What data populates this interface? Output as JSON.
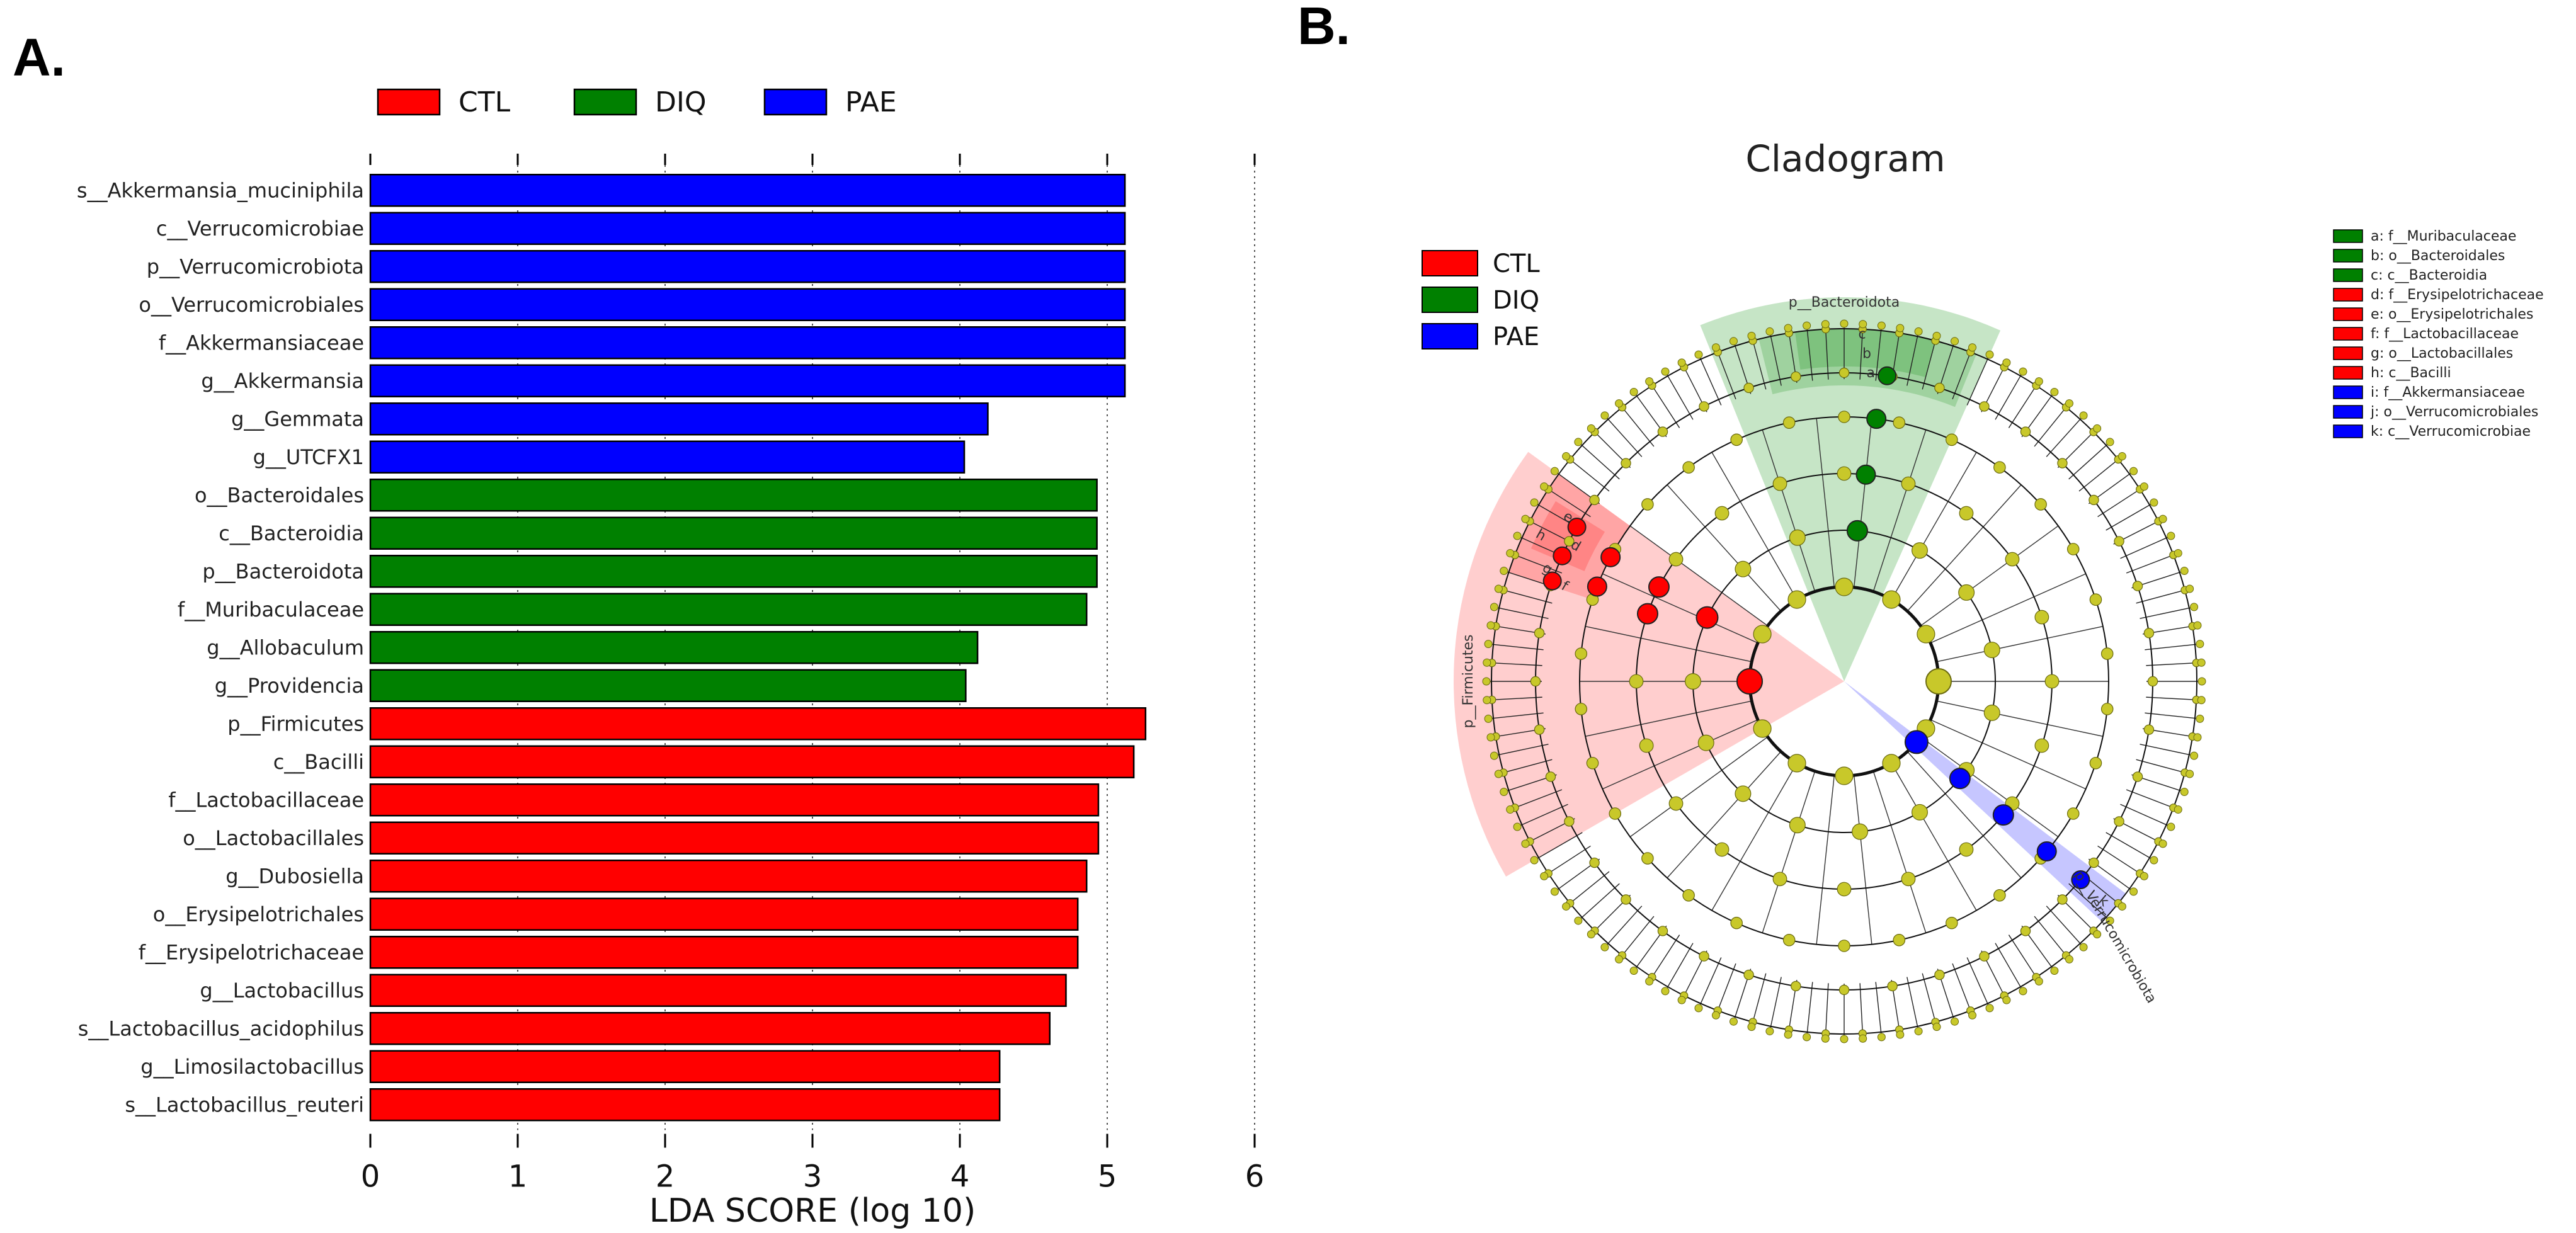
{
  "panel_a": {
    "label": "A.",
    "chart_data": {
      "type": "bar",
      "orientation": "horizontal",
      "xlabel": "LDA SCORE (log 10)",
      "xlim": [
        0,
        6
      ],
      "xticks": [
        "0",
        "1",
        "2",
        "3",
        "4",
        "5",
        "6"
      ],
      "legend": [
        {
          "name": "CTL",
          "color": "#ff0000"
        },
        {
          "name": "DIQ",
          "color": "#008000"
        },
        {
          "name": "PAE",
          "color": "#0000ff"
        }
      ],
      "bars": [
        {
          "label": "s__Akkermansia_muciniphila",
          "value": 5.12,
          "group": "PAE"
        },
        {
          "label": "c__Verrucomicrobiae",
          "value": 5.12,
          "group": "PAE"
        },
        {
          "label": "p__Verrucomicrobiota",
          "value": 5.12,
          "group": "PAE"
        },
        {
          "label": "o__Verrucomicrobiales",
          "value": 5.12,
          "group": "PAE"
        },
        {
          "label": "f__Akkermansiaceae",
          "value": 5.12,
          "group": "PAE"
        },
        {
          "label": "g__Akkermansia",
          "value": 5.12,
          "group": "PAE"
        },
        {
          "label": "g__Gemmata",
          "value": 4.19,
          "group": "PAE"
        },
        {
          "label": "g__UTCFX1",
          "value": 4.03,
          "group": "PAE"
        },
        {
          "label": "o__Bacteroidales",
          "value": 4.93,
          "group": "DIQ"
        },
        {
          "label": "c__Bacteroidia",
          "value": 4.93,
          "group": "DIQ"
        },
        {
          "label": "p__Bacteroidota",
          "value": 4.93,
          "group": "DIQ"
        },
        {
          "label": "f__Muribaculaceae",
          "value": 4.86,
          "group": "DIQ"
        },
        {
          "label": "g__Allobaculum",
          "value": 4.12,
          "group": "DIQ"
        },
        {
          "label": "g__Providencia",
          "value": 4.04,
          "group": "DIQ"
        },
        {
          "label": "p__Firmicutes",
          "value": 5.26,
          "group": "CTL"
        },
        {
          "label": "c__Bacilli",
          "value": 5.18,
          "group": "CTL"
        },
        {
          "label": "f__Lactobacillaceae",
          "value": 4.94,
          "group": "CTL"
        },
        {
          "label": "o__Lactobacillales",
          "value": 4.94,
          "group": "CTL"
        },
        {
          "label": "g__Dubosiella",
          "value": 4.86,
          "group": "CTL"
        },
        {
          "label": "o__Erysipelotrichales",
          "value": 4.8,
          "group": "CTL"
        },
        {
          "label": "f__Erysipelotrichaceae",
          "value": 4.8,
          "group": "CTL"
        },
        {
          "label": "g__Lactobacillus",
          "value": 4.72,
          "group": "CTL"
        },
        {
          "label": "s__Lactobacillus_acidophilus",
          "value": 4.61,
          "group": "CTL"
        },
        {
          "label": "g__Limosilactobacillus",
          "value": 4.27,
          "group": "CTL"
        },
        {
          "label": "s__Lactobacillus_reuteri",
          "value": 4.27,
          "group": "CTL"
        }
      ]
    }
  },
  "panel_b": {
    "label": "B.",
    "chart_data": {
      "type": "cladogram",
      "title": "Cladogram",
      "legend": [
        {
          "name": "CTL",
          "color": "#ff0000"
        },
        {
          "name": "DIQ",
          "color": "#008000"
        },
        {
          "name": "PAE",
          "color": "#0000ff"
        }
      ],
      "sector_labels": {
        "bacteroidota": "p__Bacteroidota",
        "firmicutes": "p__Firmicutes",
        "verrucomicrobiota": "p__Verrucomicrobiota",
        "c": "c",
        "b": "b",
        "a": "a",
        "h": "h",
        "e": "e",
        "g": "g",
        "d": "d",
        "f": "f",
        "k": "k"
      },
      "key": [
        {
          "text": "a: f__Muribaculaceae",
          "color": "#008000"
        },
        {
          "text": "b: o__Bacteroidales",
          "color": "#008000"
        },
        {
          "text": "c: c__Bacteroidia",
          "color": "#008000"
        },
        {
          "text": "d: f__Erysipelotrichaceae",
          "color": "#ff0000"
        },
        {
          "text": "e: o__Erysipelotrichales",
          "color": "#ff0000"
        },
        {
          "text": "f: f__Lactobacillaceae",
          "color": "#ff0000"
        },
        {
          "text": "g: o__Lactobacillales",
          "color": "#ff0000"
        },
        {
          "text": "h: c__Bacilli",
          "color": "#ff0000"
        },
        {
          "text": "i: f__Akkermansiaceae",
          "color": "#0000ff"
        },
        {
          "text": "j: o__Verrucomicrobiales",
          "color": "#0000ff"
        },
        {
          "text": "k: c__Verrucomicrobiae",
          "color": "#0000ff"
        }
      ]
    }
  }
}
